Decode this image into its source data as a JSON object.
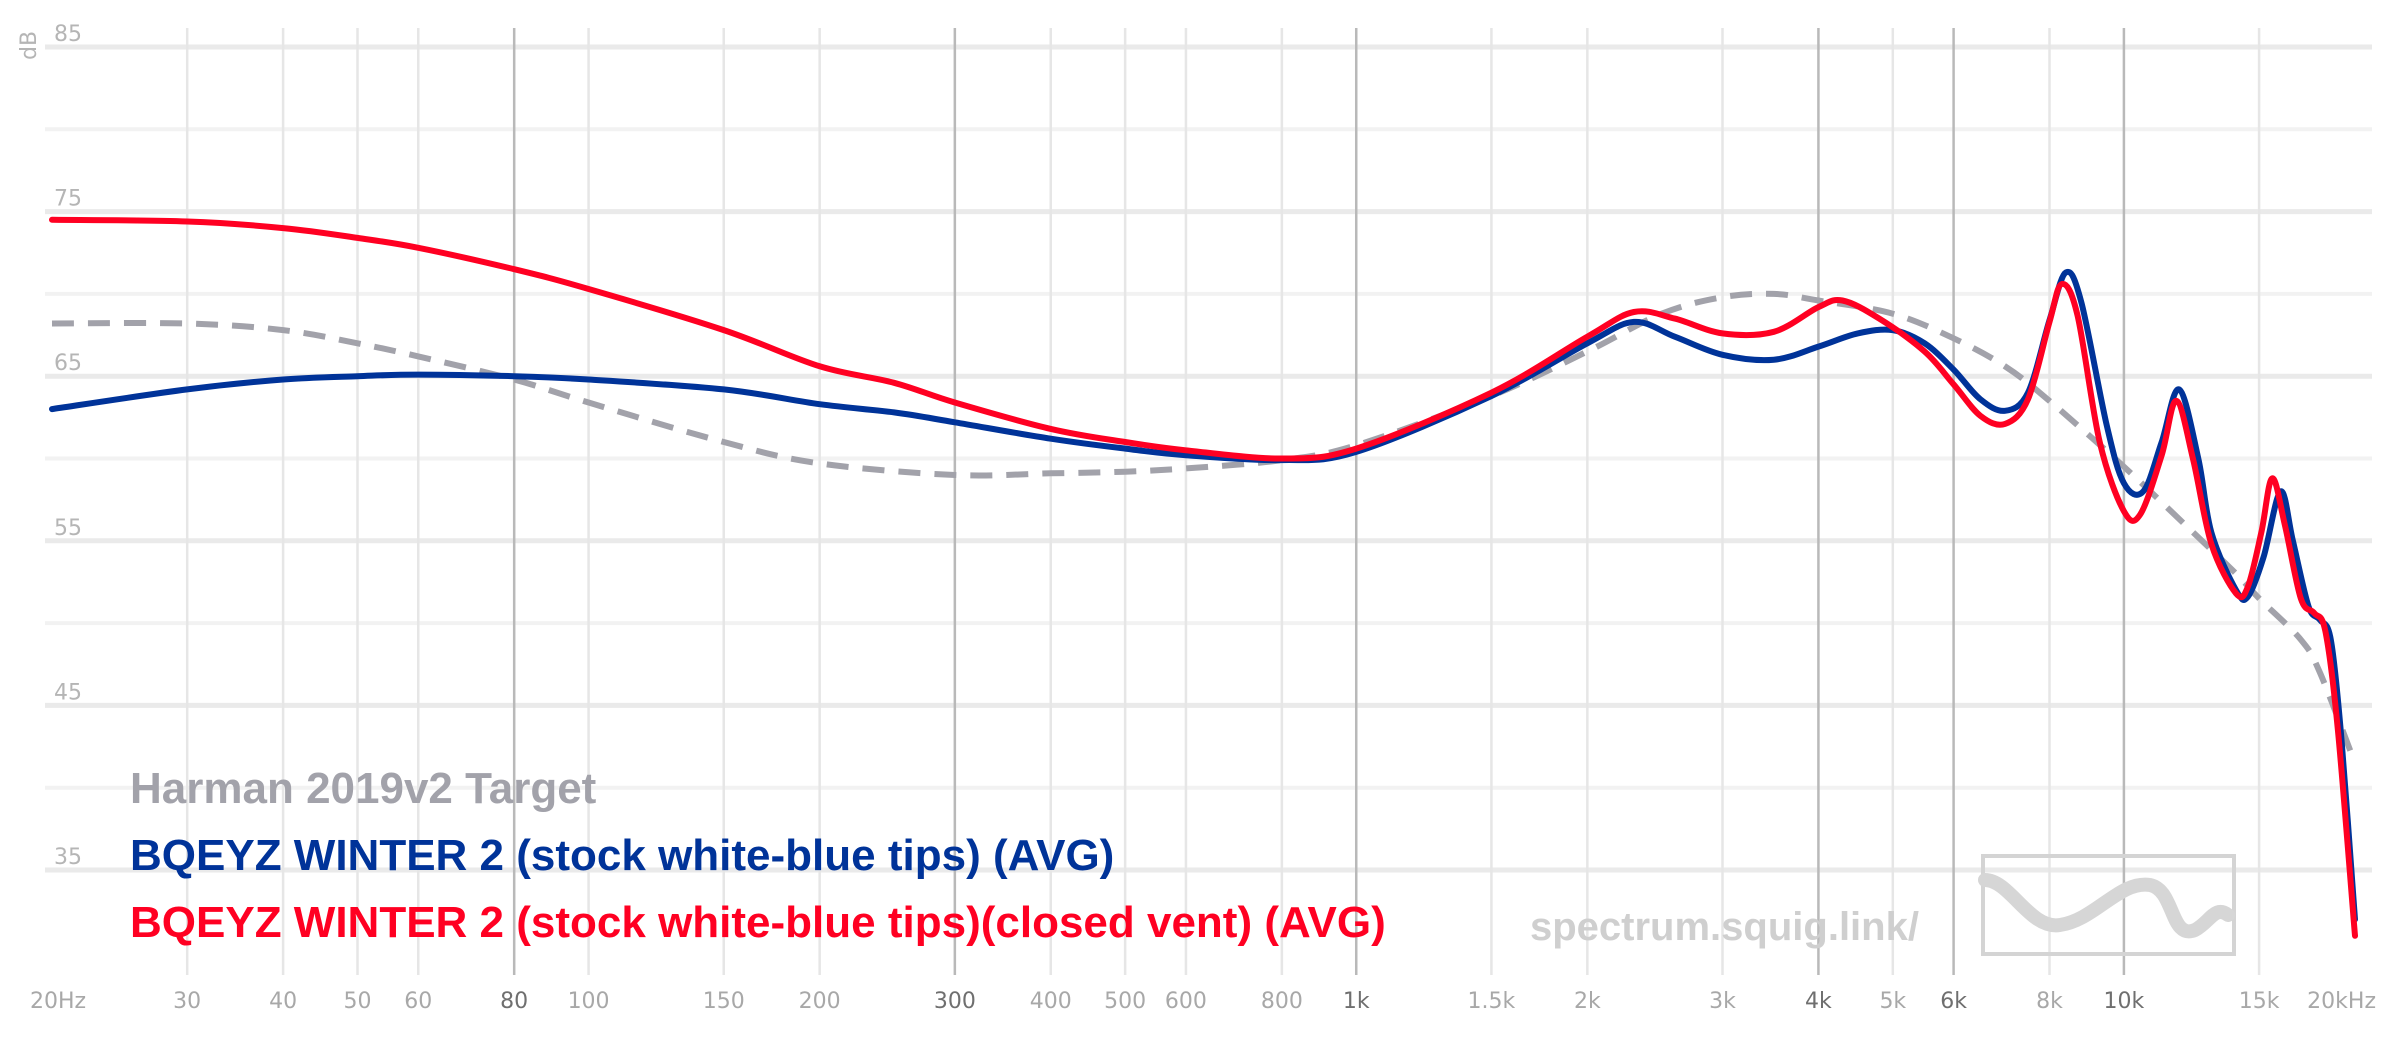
{
  "chart_data": {
    "type": "line",
    "ylabel": "dB",
    "xscale": "log",
    "xlim": [
      20,
      20000
    ],
    "ylim": [
      30,
      85
    ],
    "y_ticks": [
      85,
      75,
      65,
      55,
      45,
      35
    ],
    "x_ticks": [
      {
        "value": 20,
        "label": "20Hz",
        "major": false
      },
      {
        "value": 30,
        "label": "30",
        "major": false
      },
      {
        "value": 40,
        "label": "40",
        "major": false
      },
      {
        "value": 50,
        "label": "50",
        "major": false
      },
      {
        "value": 60,
        "label": "60",
        "major": false
      },
      {
        "value": 80,
        "label": "80",
        "major": true
      },
      {
        "value": 100,
        "label": "100",
        "major": false
      },
      {
        "value": 150,
        "label": "150",
        "major": false
      },
      {
        "value": 200,
        "label": "200",
        "major": false
      },
      {
        "value": 300,
        "label": "300",
        "major": true
      },
      {
        "value": 400,
        "label": "400",
        "major": false
      },
      {
        "value": 500,
        "label": "500",
        "major": false
      },
      {
        "value": 600,
        "label": "600",
        "major": false
      },
      {
        "value": 800,
        "label": "800",
        "major": false
      },
      {
        "value": 1000,
        "label": "1k",
        "major": true
      },
      {
        "value": 1500,
        "label": "1.5k",
        "major": false
      },
      {
        "value": 2000,
        "label": "2k",
        "major": false
      },
      {
        "value": 3000,
        "label": "3k",
        "major": false
      },
      {
        "value": 4000,
        "label": "4k",
        "major": true
      },
      {
        "value": 5000,
        "label": "5k",
        "major": false
      },
      {
        "value": 6000,
        "label": "6k",
        "major": true
      },
      {
        "value": 8000,
        "label": "8k",
        "major": false
      },
      {
        "value": 10000,
        "label": "10k",
        "major": true
      },
      {
        "value": 15000,
        "label": "15k",
        "major": false
      },
      {
        "value": 20000,
        "label": "20kHz",
        "major": false
      }
    ],
    "series": [
      {
        "name": "Harman 2019v2 Target",
        "color": "#a2a2aa",
        "style": "dashed",
        "points": [
          [
            20,
            68.2
          ],
          [
            30,
            68.2
          ],
          [
            40,
            67.8
          ],
          [
            50,
            67.0
          ],
          [
            60,
            66.2
          ],
          [
            80,
            64.8
          ],
          [
            100,
            63.4
          ],
          [
            150,
            61.0
          ],
          [
            200,
            59.7
          ],
          [
            300,
            59.0
          ],
          [
            400,
            59.1
          ],
          [
            500,
            59.2
          ],
          [
            600,
            59.4
          ],
          [
            800,
            59.9
          ],
          [
            1000,
            60.8
          ],
          [
            1500,
            63.8
          ],
          [
            2000,
            66.5
          ],
          [
            2500,
            68.8
          ],
          [
            3000,
            69.8
          ],
          [
            3500,
            70.0
          ],
          [
            4000,
            69.6
          ],
          [
            5000,
            68.8
          ],
          [
            6000,
            67.3
          ],
          [
            7000,
            65.6
          ],
          [
            8000,
            63.5
          ],
          [
            10000,
            59.5
          ],
          [
            12000,
            56.0
          ],
          [
            14000,
            53.0
          ],
          [
            15000,
            51.5
          ],
          [
            17000,
            49.0
          ],
          [
            18000,
            47.0
          ],
          [
            20000,
            41.5
          ]
        ]
      },
      {
        "name": "BQEYZ WINTER 2 (stock white-blue tips) (AVG)",
        "color": "#003399",
        "style": "solid",
        "points": [
          [
            20,
            63.0
          ],
          [
            30,
            64.2
          ],
          [
            40,
            64.8
          ],
          [
            50,
            65.0
          ],
          [
            60,
            65.1
          ],
          [
            80,
            65.0
          ],
          [
            100,
            64.8
          ],
          [
            150,
            64.2
          ],
          [
            200,
            63.3
          ],
          [
            250,
            62.8
          ],
          [
            300,
            62.2
          ],
          [
            400,
            61.2
          ],
          [
            500,
            60.6
          ],
          [
            600,
            60.2
          ],
          [
            800,
            59.9
          ],
          [
            1000,
            60.4
          ],
          [
            1500,
            63.8
          ],
          [
            2000,
            67.0
          ],
          [
            2300,
            68.3
          ],
          [
            2600,
            67.4
          ],
          [
            3000,
            66.3
          ],
          [
            3500,
            66.0
          ],
          [
            4000,
            66.8
          ],
          [
            4500,
            67.6
          ],
          [
            5000,
            67.8
          ],
          [
            5500,
            67.0
          ],
          [
            6000,
            65.4
          ],
          [
            6500,
            63.6
          ],
          [
            7000,
            62.9
          ],
          [
            7500,
            64.0
          ],
          [
            8000,
            68.4
          ],
          [
            8400,
            71.3
          ],
          [
            8800,
            69.5
          ],
          [
            9500,
            62.0
          ],
          [
            10000,
            58.5
          ],
          [
            10600,
            58.0
          ],
          [
            11200,
            61.0
          ],
          [
            11800,
            64.2
          ],
          [
            12500,
            60.0
          ],
          [
            13000,
            55.5
          ],
          [
            14000,
            52.0
          ],
          [
            14500,
            51.6
          ],
          [
            15200,
            54.0
          ],
          [
            16000,
            58.0
          ],
          [
            16600,
            55.0
          ],
          [
            17400,
            51.0
          ],
          [
            18000,
            50.2
          ],
          [
            18600,
            49.0
          ],
          [
            19200,
            43.0
          ],
          [
            20000,
            32.0
          ]
        ]
      },
      {
        "name": "BQEYZ WINTER 2 (stock white-blue tips)(closed vent) (AVG)",
        "color": "#ff0022",
        "style": "solid",
        "points": [
          [
            20,
            74.5
          ],
          [
            30,
            74.4
          ],
          [
            40,
            74.0
          ],
          [
            50,
            73.4
          ],
          [
            60,
            72.8
          ],
          [
            80,
            71.5
          ],
          [
            100,
            70.3
          ],
          [
            150,
            67.8
          ],
          [
            200,
            65.6
          ],
          [
            250,
            64.6
          ],
          [
            300,
            63.4
          ],
          [
            400,
            61.8
          ],
          [
            500,
            61.0
          ],
          [
            600,
            60.5
          ],
          [
            800,
            60.0
          ],
          [
            1000,
            60.6
          ],
          [
            1500,
            64.0
          ],
          [
            2000,
            67.4
          ],
          [
            2300,
            68.9
          ],
          [
            2600,
            68.5
          ],
          [
            3000,
            67.6
          ],
          [
            3500,
            67.7
          ],
          [
            4000,
            69.2
          ],
          [
            4300,
            69.6
          ],
          [
            4800,
            68.5
          ],
          [
            5500,
            66.5
          ],
          [
            6000,
            64.5
          ],
          [
            6500,
            62.6
          ],
          [
            7000,
            62.1
          ],
          [
            7500,
            63.6
          ],
          [
            8000,
            68.3
          ],
          [
            8300,
            70.6
          ],
          [
            8700,
            68.7
          ],
          [
            9300,
            61.0
          ],
          [
            10000,
            56.8
          ],
          [
            10500,
            56.6
          ],
          [
            11200,
            60.2
          ],
          [
            11700,
            63.5
          ],
          [
            12300,
            60.0
          ],
          [
            13000,
            54.8
          ],
          [
            14000,
            51.8
          ],
          [
            14500,
            52.2
          ],
          [
            15100,
            55.5
          ],
          [
            15600,
            58.8
          ],
          [
            16200,
            56.0
          ],
          [
            17000,
            51.5
          ],
          [
            17700,
            50.6
          ],
          [
            18300,
            49.5
          ],
          [
            19000,
            43.5
          ],
          [
            20000,
            31.0
          ]
        ]
      }
    ],
    "watermark": "spectrum.squig.link/",
    "legend_placement": "bottom-left",
    "grid": true
  }
}
